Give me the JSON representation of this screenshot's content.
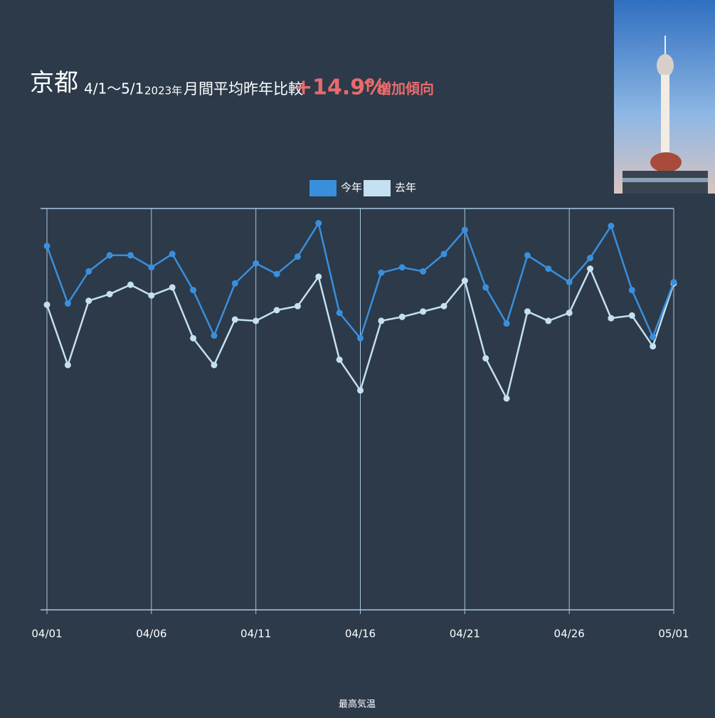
{
  "header": {
    "city": "京都",
    "period": "4/1～5/1",
    "year": "2023年",
    "comparison": "月間平均昨年比較",
    "change": "+14.9%",
    "arrow": "↑",
    "trend": "増加傾向"
  },
  "chart_data": {
    "type": "line",
    "x_label": "最高気温",
    "categories": [
      "04/01",
      null,
      null,
      null,
      null,
      "04/06",
      null,
      null,
      null,
      null,
      "04/11",
      null,
      null,
      null,
      null,
      "04/16",
      null,
      null,
      null,
      null,
      "04/21",
      null,
      null,
      null,
      null,
      "04/26",
      null,
      null,
      null,
      null,
      "05/01"
    ],
    "series": [
      {
        "name": "今年",
        "color": "#3a8fdc",
        "values": [
          27.2,
          22.9,
          25.3,
          26.5,
          26.5,
          25.6,
          26.6,
          23.9,
          20.5,
          24.4,
          25.9,
          25.1,
          26.4,
          28.9,
          22.2,
          20.3,
          25.2,
          25.6,
          25.3,
          26.6,
          28.4,
          24.1,
          21.4,
          26.5,
          25.5,
          24.5,
          26.3,
          28.7,
          23.9,
          20.4,
          24.5
        ]
      },
      {
        "name": "去年",
        "color": "#c5e0f0",
        "values": [
          22.8,
          18.3,
          23.1,
          23.6,
          24.3,
          23.5,
          24.1,
          20.3,
          18.3,
          21.7,
          21.6,
          22.4,
          22.7,
          24.9,
          18.7,
          16.4,
          21.6,
          21.9,
          22.3,
          22.7,
          24.6,
          18.8,
          15.8,
          22.3,
          21.6,
          22.2,
          25.5,
          21.8,
          22.0,
          19.7,
          24.4
        ]
      }
    ],
    "ylim": [
      0,
      30
    ],
    "grid": true
  }
}
